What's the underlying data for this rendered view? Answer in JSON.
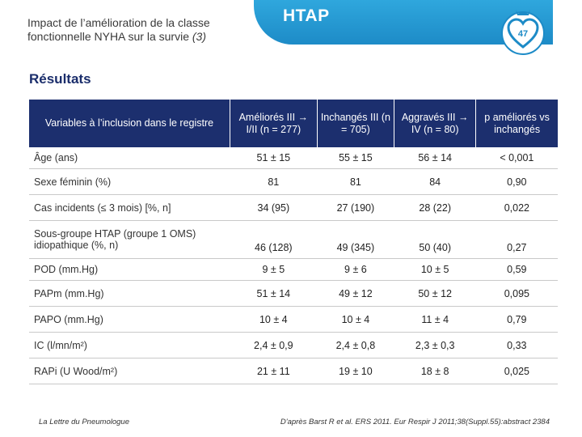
{
  "header": {
    "title": "Impact de l’amélioration de la classe fonctionnelle NYHA sur la survie",
    "ref": "(3)",
    "banner": "HTAP",
    "page_number": "47"
  },
  "section_title": "Résultats",
  "table": {
    "columns": [
      "Variables à l’inclusion dans le registre",
      "Améliorés III → I/II (n = 277)",
      "Inchangés III (n = 705)",
      "Aggravés III → IV (n = 80)",
      "p améliorés vs inchangés"
    ],
    "rows": [
      {
        "label": "Âge (ans)",
        "values": [
          "51 ± 15",
          "55 ± 15",
          "56 ± 14",
          "< 0,001"
        ]
      },
      {
        "label": "Sexe féminin (%)",
        "values": [
          "81",
          "81",
          "84",
          "0,90"
        ]
      },
      {
        "label": "Cas incidents (≤ 3 mois) [%, n]",
        "values": [
          "34 (95)",
          "27 (190)",
          "28 (22)",
          "0,022"
        ]
      },
      {
        "label": "Sous-groupe HTAP (groupe 1 OMS) idiopathique (%, n)",
        "values": [
          "46 (128)",
          "49 (345)",
          "50 (40)",
          "0,27"
        ]
      },
      {
        "label": "POD (mm.Hg)",
        "values": [
          "9 ± 5",
          "9 ± 6",
          "10 ± 5",
          "0,59"
        ]
      },
      {
        "label": "PAPm (mm.Hg)",
        "values": [
          "51 ± 14",
          "49 ± 12",
          "50 ± 12",
          "0,095"
        ]
      },
      {
        "label": "PAPO (mm.Hg)",
        "values": [
          "10 ± 4",
          "10 ± 4",
          "11 ± 4",
          "0,79"
        ]
      },
      {
        "label": "IC (l/mn/m²)",
        "values": [
          "2,4 ± 0,9",
          "2,4 ± 0,8",
          "2,3 ± 0,3",
          "0,33"
        ]
      },
      {
        "label": "RAPi (U Wood/m²)",
        "values": [
          "21 ± 11",
          "19 ± 10",
          "18 ± 8",
          "0,025"
        ]
      }
    ]
  },
  "footer": {
    "left": "La Lettre du Pneumologue",
    "right": "D'après Barst R et al. ERS 2011. Eur Respir J 2011;38(Suppl.55):abstract 2384"
  },
  "colors": {
    "banner": "#1d8bc7",
    "table_header": "#1c2f6e",
    "section_title": "#1a2d6b"
  }
}
